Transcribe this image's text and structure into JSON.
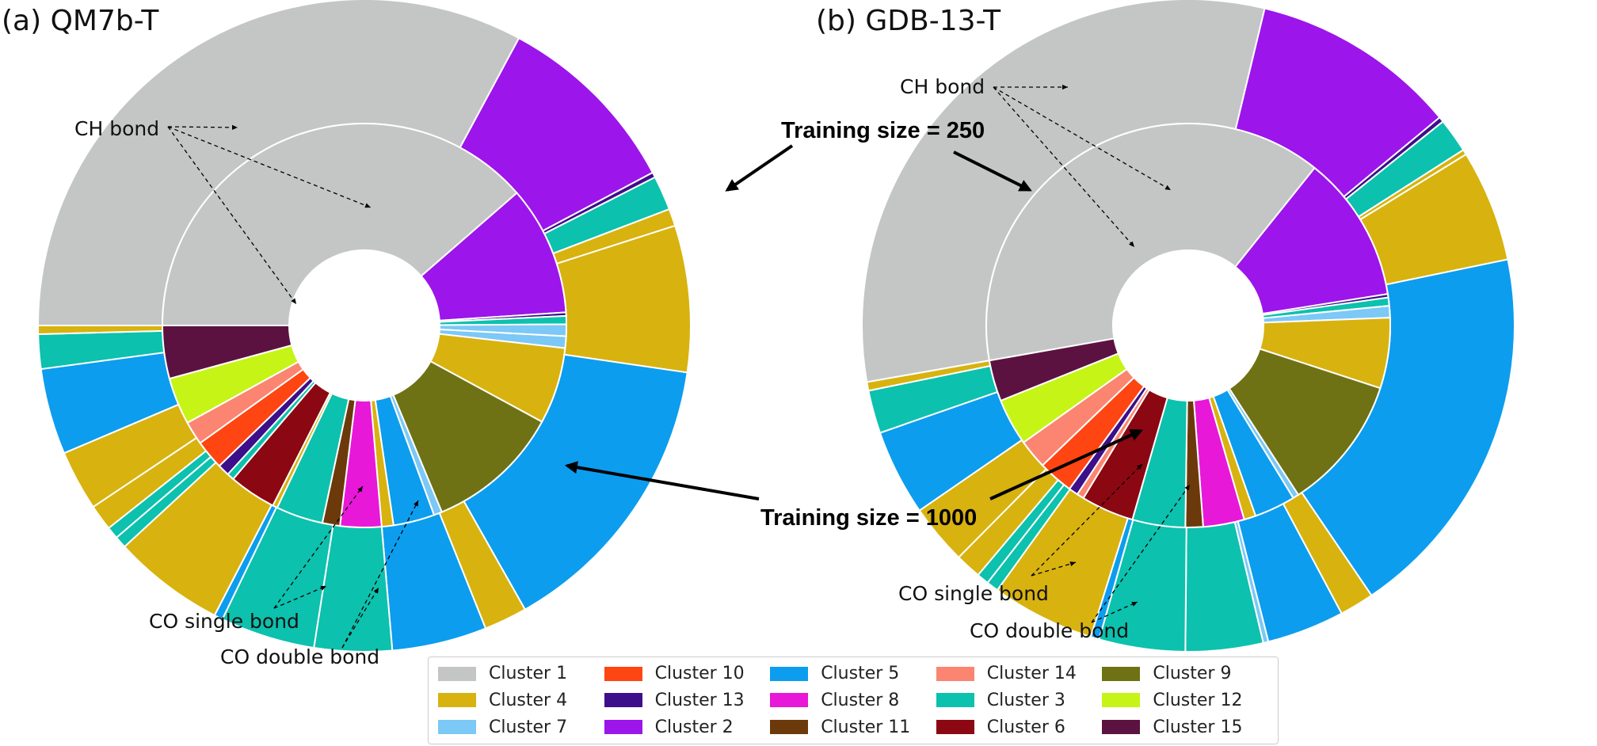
{
  "chart_data": [
    {
      "type": "pie",
      "subtype": "nested-donut",
      "title": "(a) QM7b-T",
      "rings": [
        {
          "name": "Training size = 250",
          "position": "outer",
          "slices": [
            {
              "cluster": 1,
              "value": 38.5
            },
            {
              "cluster": 2,
              "value": 11.0
            },
            {
              "cluster": 13,
              "value": 0.3
            },
            {
              "cluster": 3,
              "value": 2.0
            },
            {
              "cluster": 4,
              "value": 1.0
            },
            {
              "cluster": 4,
              "value": 8.5
            },
            {
              "cluster": 5,
              "value": 17.0
            },
            {
              "cluster": 4,
              "value": 2.5
            },
            {
              "cluster": 5,
              "value": 5.5
            },
            {
              "cluster": 3,
              "value": 4.5
            },
            {
              "cluster": 3,
              "value": 5.5
            },
            {
              "cluster": 5,
              "value": 0.5
            },
            {
              "cluster": 4,
              "value": 6.5
            },
            {
              "cluster": 3,
              "value": 0.7
            },
            {
              "cluster": 3,
              "value": 0.7
            },
            {
              "cluster": 4,
              "value": 1.5
            },
            {
              "cluster": 4,
              "value": 3.5
            },
            {
              "cluster": 5,
              "value": 5.0
            },
            {
              "cluster": 3,
              "value": 2.0
            },
            {
              "cluster": 4,
              "value": 0.5
            }
          ]
        },
        {
          "name": "Training size = 1000",
          "position": "inner",
          "slices": [
            {
              "cluster": 1,
              "value": 41.0
            },
            {
              "cluster": 2,
              "value": 11.0
            },
            {
              "cluster": 13,
              "value": 0.3
            },
            {
              "cluster": 3,
              "value": 0.7
            },
            {
              "cluster": 7,
              "value": 1.0
            },
            {
              "cluster": 7,
              "value": 1.0
            },
            {
              "cluster": 4,
              "value": 6.5
            },
            {
              "cluster": 9,
              "value": 11.5
            },
            {
              "cluster": 7,
              "value": 0.7
            },
            {
              "cluster": 5,
              "value": 3.5
            },
            {
              "cluster": 4,
              "value": 1.0
            },
            {
              "cluster": 8,
              "value": 3.5
            },
            {
              "cluster": 11,
              "value": 1.5
            },
            {
              "cluster": 3,
              "value": 4.0
            },
            {
              "cluster": 4,
              "value": 0.4
            },
            {
              "cluster": 6,
              "value": 4.0
            },
            {
              "cluster": 3,
              "value": 0.6
            },
            {
              "cluster": 13,
              "value": 1.0
            },
            {
              "cluster": 10,
              "value": 2.5
            },
            {
              "cluster": 14,
              "value": 2.0
            },
            {
              "cluster": 12,
              "value": 4.0
            },
            {
              "cluster": 15,
              "value": 4.5
            }
          ]
        }
      ],
      "annotations": [
        "CH bond",
        "CO single bond",
        "CO double bond",
        "Training size = 250",
        "Training size = 1000"
      ]
    },
    {
      "type": "pie",
      "subtype": "nested-donut",
      "title": "(b) GDB-13-T",
      "rings": [
        {
          "name": "Training size = 250",
          "position": "outer",
          "slices": [
            {
              "cluster": 1,
              "value": 37.0
            },
            {
              "cluster": 2,
              "value": 12.0
            },
            {
              "cluster": 13,
              "value": 0.3
            },
            {
              "cluster": 3,
              "value": 2.0
            },
            {
              "cluster": 4,
              "value": 0.3
            },
            {
              "cluster": 4,
              "value": 6.5
            },
            {
              "cluster": 5,
              "value": 22.0
            },
            {
              "cluster": 4,
              "value": 2.0
            },
            {
              "cluster": 5,
              "value": 4.5
            },
            {
              "cluster": 7,
              "value": 0.3
            },
            {
              "cluster": 3,
              "value": 4.5
            },
            {
              "cluster": 3,
              "value": 5.0
            },
            {
              "cluster": 5,
              "value": 0.5
            },
            {
              "cluster": 4,
              "value": 6.0
            },
            {
              "cluster": 3,
              "value": 0.7
            },
            {
              "cluster": 3,
              "value": 0.7
            },
            {
              "cluster": 4,
              "value": 1.5
            },
            {
              "cluster": 4,
              "value": 3.5
            },
            {
              "cluster": 5,
              "value": 5.0
            },
            {
              "cluster": 3,
              "value": 2.5
            },
            {
              "cluster": 4,
              "value": 0.5
            }
          ]
        },
        {
          "name": "Training size = 1000",
          "position": "inner",
          "slices": [
            {
              "cluster": 1,
              "value": 41.0
            },
            {
              "cluster": 2,
              "value": 12.5
            },
            {
              "cluster": 13,
              "value": 0.3
            },
            {
              "cluster": 3,
              "value": 0.7
            },
            {
              "cluster": 7,
              "value": 1.0
            },
            {
              "cluster": 4,
              "value": 6.0
            },
            {
              "cluster": 9,
              "value": 11.5
            },
            {
              "cluster": 7,
              "value": 0.5
            },
            {
              "cluster": 5,
              "value": 3.5
            },
            {
              "cluster": 4,
              "value": 1.0
            },
            {
              "cluster": 8,
              "value": 3.5
            },
            {
              "cluster": 11,
              "value": 1.5
            },
            {
              "cluster": 3,
              "value": 4.5
            },
            {
              "cluster": 6,
              "value": 4.5
            },
            {
              "cluster": 14,
              "value": 0.6
            },
            {
              "cluster": 13,
              "value": 0.8
            },
            {
              "cluster": 10,
              "value": 3.0
            },
            {
              "cluster": 14,
              "value": 2.5
            },
            {
              "cluster": 12,
              "value": 4.0
            },
            {
              "cluster": 15,
              "value": 3.5
            }
          ]
        }
      ],
      "annotations": [
        "CH bond",
        "CO single bond",
        "CO double bond",
        "Training size = 250",
        "Training size = 1000"
      ]
    }
  ],
  "clusters": [
    {
      "id": 1,
      "label": "Cluster 1",
      "color": "#c4c6c5"
    },
    {
      "id": 2,
      "label": "Cluster 2",
      "color": "#9c15ea"
    },
    {
      "id": 3,
      "label": "Cluster 3",
      "color": "#0cc1ad"
    },
    {
      "id": 4,
      "label": "Cluster 4",
      "color": "#d8b20f"
    },
    {
      "id": 5,
      "label": "Cluster 5",
      "color": "#0c9dee"
    },
    {
      "id": 6,
      "label": "Cluster 6",
      "color": "#8b0712"
    },
    {
      "id": 7,
      "label": "Cluster 7",
      "color": "#7cc8f6"
    },
    {
      "id": 8,
      "label": "Cluster 8",
      "color": "#e818d8"
    },
    {
      "id": 9,
      "label": "Cluster 9",
      "color": "#6f7214"
    },
    {
      "id": 10,
      "label": "Cluster 10",
      "color": "#ff4511"
    },
    {
      "id": 11,
      "label": "Cluster 11",
      "color": "#6c3a0a"
    },
    {
      "id": 12,
      "label": "Cluster 12",
      "color": "#c6f416"
    },
    {
      "id": 13,
      "label": "Cluster 13",
      "color": "#3d0f8a"
    },
    {
      "id": 14,
      "label": "Cluster 14",
      "color": "#fb8570"
    },
    {
      "id": 15,
      "label": "Cluster 15",
      "color": "#5c1241"
    }
  ],
  "panels": {
    "a": {
      "title": "(a) QM7b-T"
    },
    "b": {
      "title": "(b) GDB-13-T"
    }
  },
  "labels": {
    "ch_bond": "CH bond",
    "co_single": "CO single bond",
    "co_double": "CO double bond",
    "train_250": "Training size = 250",
    "train_1000": "Training size = 1000"
  },
  "legend": {
    "placement": "bottom-center",
    "order": [
      1,
      4,
      7,
      10,
      13,
      2,
      5,
      8,
      11,
      14,
      3,
      6,
      9,
      12,
      15
    ]
  }
}
